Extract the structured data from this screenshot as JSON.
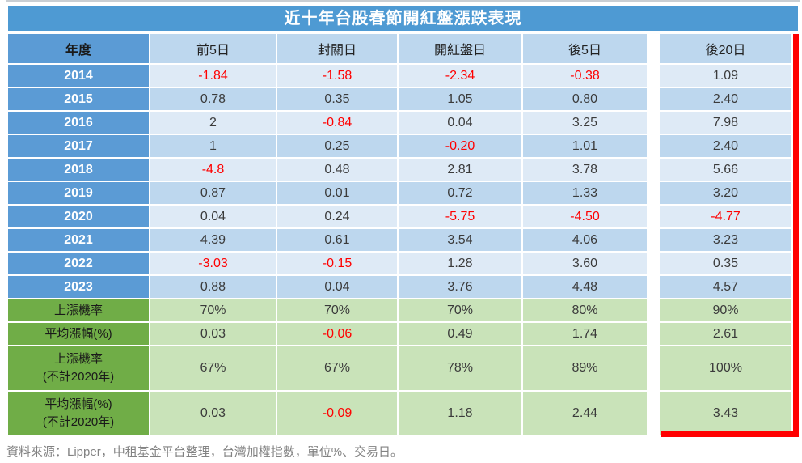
{
  "chart_data": {
    "type": "table",
    "title": "近十年台股春節開紅盤漲跌表現",
    "columns": [
      "年度",
      "前5日",
      "封關日",
      "開紅盤日",
      "後5日",
      "後20日"
    ],
    "rows": [
      {
        "label": "2014",
        "values": [
          "-1.84",
          "-1.58",
          "-2.34",
          "-0.38",
          "1.09"
        ]
      },
      {
        "label": "2015",
        "values": [
          "0.78",
          "0.35",
          "1.05",
          "0.80",
          "2.40"
        ]
      },
      {
        "label": "2016",
        "values": [
          "2",
          "-0.84",
          "0.04",
          "3.25",
          "7.98"
        ]
      },
      {
        "label": "2017",
        "values": [
          "1",
          "0.25",
          "-0.20",
          "1.01",
          "2.40"
        ]
      },
      {
        "label": "2018",
        "values": [
          "-4.8",
          "0.48",
          "2.81",
          "3.78",
          "5.66"
        ]
      },
      {
        "label": "2019",
        "values": [
          "0.87",
          "0.01",
          "0.72",
          "1.33",
          "3.20"
        ]
      },
      {
        "label": "2020",
        "values": [
          "0.04",
          "0.24",
          "-5.75",
          "-4.50",
          "-4.77"
        ]
      },
      {
        "label": "2021",
        "values": [
          "4.39",
          "0.61",
          "3.54",
          "4.06",
          "3.23"
        ]
      },
      {
        "label": "2022",
        "values": [
          "-3.03",
          "-0.15",
          "1.28",
          "3.60",
          "0.35"
        ]
      },
      {
        "label": "2023",
        "values": [
          "0.88",
          "0.04",
          "3.76",
          "4.48",
          "4.57"
        ]
      }
    ],
    "summary_rows": [
      {
        "label": "上漲機率",
        "label_line2": "",
        "tall": false,
        "values": [
          "70%",
          "70%",
          "70%",
          "80%",
          "90%"
        ]
      },
      {
        "label": "平均漲幅(%)",
        "label_line2": "",
        "tall": false,
        "values": [
          "0.03",
          "-0.06",
          "0.49",
          "1.74",
          "2.61"
        ]
      },
      {
        "label": "上漲機率",
        "label_line2": "(不計2020年)",
        "tall": true,
        "values": [
          "67%",
          "67%",
          "78%",
          "89%",
          "100%"
        ]
      },
      {
        "label": "平均漲幅(%)",
        "label_line2": "(不計2020年)",
        "tall": true,
        "values": [
          "0.03",
          "-0.09",
          "1.18",
          "2.44",
          "3.43"
        ]
      }
    ],
    "legend_note": "負值以紅色顯示",
    "highlight_column": "後20日"
  },
  "footer": {
    "source_note": "資料來源：Lipper，中租基金平台整理，台灣加權指數，單位%、交易日。"
  },
  "colors": {
    "title_bg": "#4E9AD3",
    "year_column_bg": "#5B9BD5",
    "header_cell_bg": "#BDD7EE",
    "row_light_bg": "#DEEAF6",
    "row_dark_bg": "#BDD7EE",
    "summary_label_bg": "#70AD47",
    "summary_value_bg": "#C9E3B9",
    "negative_value": "#FF0000",
    "highlight_border": "#FF0000",
    "footer_text": "#828282"
  }
}
